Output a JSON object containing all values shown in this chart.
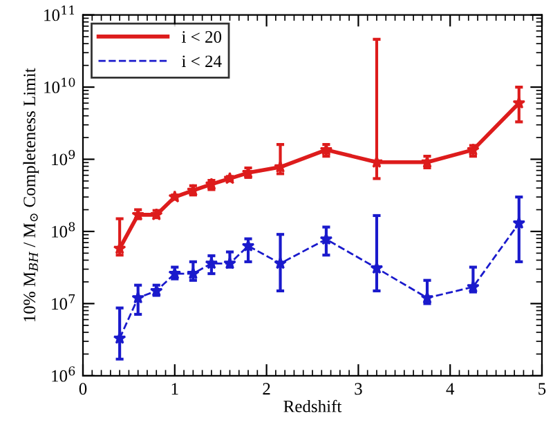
{
  "chart_data": {
    "type": "line",
    "xlabel": "Redshift",
    "ylabel": "10% M$_{BH}$ / M$_{⊙}$ Completeness Limit",
    "log": "y",
    "legend": "top left",
    "marker": "star",
    "x": [
      0.4,
      0.6,
      0.8,
      1.0,
      1.2,
      1.4,
      1.6,
      1.8,
      2.15,
      2.65,
      3.2,
      3.75,
      4.25,
      4.75
    ],
    "xlim": [
      0,
      5
    ],
    "xticks": [
      0,
      1,
      2,
      3,
      4,
      5
    ],
    "ylim": [
      1000000.0,
      100000000000.0
    ],
    "yticks": [
      {
        "value": 1000000.0,
        "label": "10$^{6}$"
      },
      {
        "value": 10000000.0,
        "label": "10$^{7}$"
      },
      {
        "value": 100000000.0,
        "label": "10$^{8}$"
      },
      {
        "value": 1000000000.0,
        "label": "10$^{9}$"
      },
      {
        "value": 10000000000.0,
        "label": "10$^{10}$"
      },
      {
        "value": 100000000000.0,
        "label": "10$^{11}$"
      }
    ],
    "series": [
      {
        "name": "i < 20",
        "color": "#dd1c1c",
        "line_style": "solid",
        "values": [
          58000000.0,
          170000000.0,
          170000000.0,
          300000000.0,
          370000000.0,
          450000000.0,
          540000000.0,
          650000000.0,
          780000000.0,
          1350000000.0,
          910000000.0,
          910000000.0,
          1350000000.0,
          6000000000.0
        ],
        "errors": [
          [
            47000000.0,
            150000000.0
          ],
          [
            150000000.0,
            200000000.0
          ],
          [
            155000000.0,
            195000000.0
          ],
          [
            280000000.0,
            320000000.0
          ],
          [
            320000000.0,
            430000000.0
          ],
          [
            380000000.0,
            510000000.0
          ],
          [
            500000000.0,
            580000000.0
          ],
          [
            560000000.0,
            760000000.0
          ],
          [
            630000000.0,
            1600000000.0
          ],
          [
            1100000000.0,
            1600000000.0
          ],
          [
            540000000.0,
            46000000000.0
          ],
          [
            760000000.0,
            1100000000.0
          ],
          [
            1100000000.0,
            1550000000.0
          ],
          [
            3300000000.0,
            10000000000.0
          ]
        ]
      },
      {
        "name": "i < 24",
        "color": "#1a1acc",
        "line_style": "dashed",
        "values": [
          3300000.0,
          12000000.0,
          15000000.0,
          26000000.0,
          26000000.0,
          36000000.0,
          36000000.0,
          63000000.0,
          36000000.0,
          78000000.0,
          31000000.0,
          12000000.0,
          17000000.0,
          130000000.0
        ],
        "errors": [
          [
            1700000.0,
            8700000.0
          ],
          [
            7100000.0,
            18000000.0
          ],
          [
            13000000.0,
            18000000.0
          ],
          [
            22000000.0,
            32000000.0
          ],
          [
            21000000.0,
            38000000.0
          ],
          [
            26000000.0,
            46000000.0
          ],
          [
            32000000.0,
            52000000.0
          ],
          [
            38000000.0,
            79000000.0
          ],
          [
            15000000.0,
            91000000.0
          ],
          [
            47000000.0,
            115000000.0
          ],
          [
            15000000.0,
            166000000.0
          ],
          [
            10000000.0,
            21000000.0
          ],
          [
            14500000.0,
            32000000.0
          ],
          [
            38000000.0,
            300000000.0
          ]
        ]
      }
    ]
  }
}
